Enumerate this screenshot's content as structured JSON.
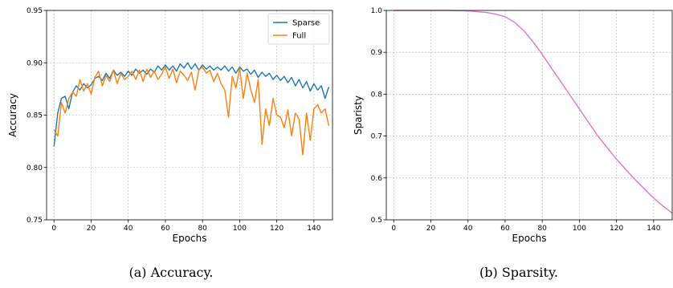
{
  "colors": {
    "sparse": "#1f77b4",
    "full": "#ff7f0e",
    "sparsity": "#e377c2",
    "grid": "#b0b0b0"
  },
  "captions": {
    "a": "(a) Accuracy.",
    "b": "(b) Sparsity."
  },
  "chart_data": [
    {
      "type": "line",
      "xlabel": "Epochs",
      "ylabel": "Accuracy",
      "xlim": [
        -4,
        150
      ],
      "ylim": [
        0.75,
        0.95
      ],
      "xticks": [
        0,
        20,
        40,
        60,
        80,
        100,
        120,
        140
      ],
      "yticks": [
        0.75,
        0.8,
        0.85,
        0.9,
        0.95
      ],
      "ytick_labels": [
        "0.75",
        "0.80",
        "0.85",
        "0.90",
        "0.95"
      ],
      "grid": true,
      "legend_position": "top-right",
      "series": [
        {
          "name": "Sparse",
          "x": [
            0,
            2,
            4,
            6,
            8,
            10,
            12,
            14,
            16,
            18,
            20,
            22,
            24,
            26,
            28,
            30,
            32,
            34,
            36,
            38,
            40,
            42,
            44,
            46,
            48,
            50,
            52,
            54,
            56,
            58,
            60,
            62,
            64,
            66,
            68,
            70,
            72,
            74,
            76,
            78,
            80,
            82,
            84,
            86,
            88,
            90,
            92,
            94,
            96,
            98,
            100,
            102,
            104,
            106,
            108,
            110,
            112,
            114,
            116,
            118,
            120,
            122,
            124,
            126,
            128,
            130,
            132,
            134,
            136,
            138,
            140,
            142,
            144,
            146,
            148
          ],
          "values": [
            0.82,
            0.852,
            0.866,
            0.868,
            0.856,
            0.872,
            0.878,
            0.874,
            0.88,
            0.876,
            0.879,
            0.885,
            0.887,
            0.883,
            0.89,
            0.885,
            0.893,
            0.888,
            0.891,
            0.887,
            0.892,
            0.888,
            0.894,
            0.89,
            0.893,
            0.889,
            0.894,
            0.891,
            0.897,
            0.893,
            0.898,
            0.893,
            0.897,
            0.892,
            0.899,
            0.895,
            0.9,
            0.894,
            0.899,
            0.893,
            0.898,
            0.894,
            0.897,
            0.893,
            0.896,
            0.893,
            0.897,
            0.892,
            0.896,
            0.89,
            0.896,
            0.892,
            0.894,
            0.889,
            0.893,
            0.886,
            0.891,
            0.887,
            0.89,
            0.884,
            0.888,
            0.883,
            0.887,
            0.881,
            0.886,
            0.878,
            0.884,
            0.876,
            0.882,
            0.873,
            0.88,
            0.874,
            0.878,
            0.866,
            0.877
          ]
        },
        {
          "name": "Full",
          "x": [
            0,
            2,
            4,
            6,
            8,
            10,
            12,
            14,
            16,
            18,
            20,
            22,
            24,
            26,
            28,
            30,
            32,
            34,
            36,
            38,
            40,
            42,
            44,
            46,
            48,
            50,
            52,
            54,
            56,
            58,
            60,
            62,
            64,
            66,
            68,
            70,
            72,
            74,
            76,
            78,
            80,
            82,
            84,
            86,
            88,
            90,
            92,
            94,
            96,
            98,
            100,
            102,
            104,
            106,
            108,
            110,
            112,
            114,
            116,
            118,
            120,
            122,
            124,
            126,
            128,
            130,
            132,
            134,
            136,
            138,
            140,
            142,
            144,
            146,
            148
          ],
          "values": [
            0.836,
            0.83,
            0.862,
            0.852,
            0.866,
            0.872,
            0.868,
            0.884,
            0.873,
            0.88,
            0.87,
            0.886,
            0.892,
            0.878,
            0.888,
            0.882,
            0.893,
            0.88,
            0.89,
            0.884,
            0.887,
            0.892,
            0.884,
            0.893,
            0.882,
            0.894,
            0.886,
            0.892,
            0.884,
            0.889,
            0.896,
            0.885,
            0.894,
            0.881,
            0.892,
            0.888,
            0.883,
            0.891,
            0.874,
            0.893,
            0.896,
            0.89,
            0.893,
            0.882,
            0.89,
            0.88,
            0.874,
            0.848,
            0.887,
            0.876,
            0.895,
            0.866,
            0.89,
            0.874,
            0.862,
            0.884,
            0.822,
            0.856,
            0.84,
            0.866,
            0.85,
            0.848,
            0.838,
            0.855,
            0.83,
            0.852,
            0.846,
            0.812,
            0.852,
            0.826,
            0.856,
            0.86,
            0.852,
            0.856,
            0.84
          ]
        }
      ]
    },
    {
      "type": "line",
      "xlabel": "Epochs",
      "ylabel": "Sparisty",
      "xlim": [
        -4,
        150
      ],
      "ylim": [
        0.5,
        1.0
      ],
      "xticks": [
        0,
        20,
        40,
        60,
        80,
        100,
        120,
        140
      ],
      "yticks": [
        0.5,
        0.6,
        0.7,
        0.8,
        0.9,
        1.0
      ],
      "ytick_labels": [
        "0.5",
        "0.6",
        "0.7",
        "0.8",
        "0.9",
        "1.0"
      ],
      "grid": true,
      "series": [
        {
          "x": [
            0,
            10,
            20,
            30,
            40,
            45,
            50,
            55,
            60,
            65,
            70,
            75,
            80,
            85,
            90,
            95,
            100,
            105,
            110,
            115,
            120,
            125,
            130,
            135,
            140,
            145,
            150
          ],
          "values": [
            1.0,
            1.0,
            1.0,
            1.0,
            0.999,
            0.997,
            0.995,
            0.991,
            0.985,
            0.972,
            0.952,
            0.925,
            0.895,
            0.862,
            0.83,
            0.797,
            0.765,
            0.732,
            0.7,
            0.672,
            0.645,
            0.62,
            0.596,
            0.574,
            0.552,
            0.533,
            0.516
          ]
        }
      ]
    }
  ]
}
